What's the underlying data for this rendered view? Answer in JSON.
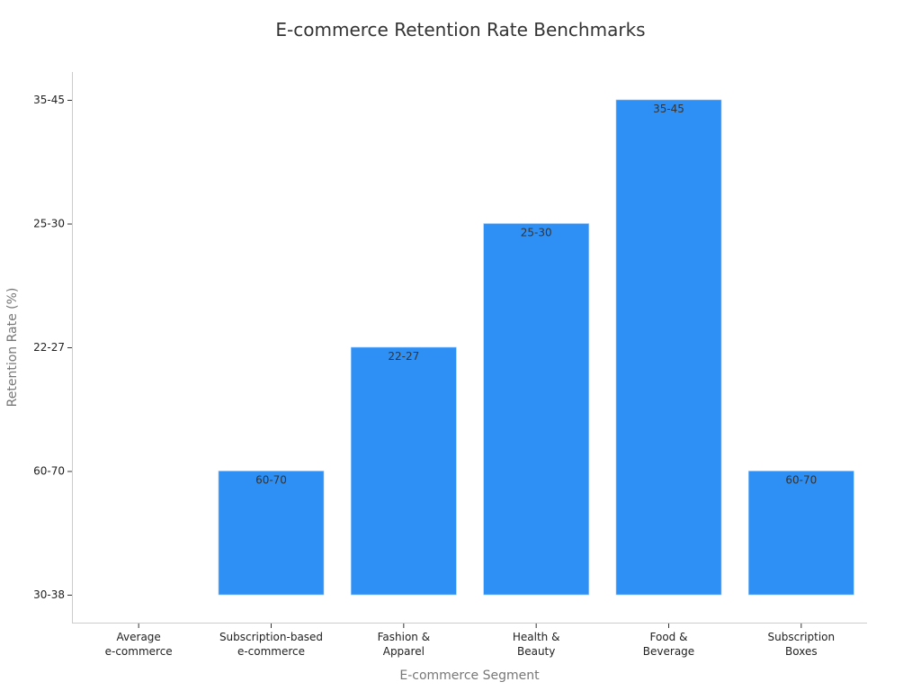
{
  "chart_data": {
    "type": "bar",
    "title": "E-commerce Retention Rate Benchmarks",
    "xlabel": "E-commerce Segment",
    "ylabel": "Retention Rate (%)",
    "y_tick_labels": [
      "30-38",
      "60-70",
      "22-27",
      "25-30",
      "35-45"
    ],
    "categories": [
      [
        "Average",
        "e-commerce"
      ],
      [
        "Subscription-based",
        "e-commerce"
      ],
      [
        "Fashion &",
        "Apparel"
      ],
      [
        "Health &",
        "Beauty"
      ],
      [
        "Food &",
        "Beverage"
      ],
      [
        "Subscription",
        "Boxes"
      ]
    ],
    "values": [
      "30-38",
      "60-70",
      "22-27",
      "25-30",
      "35-45",
      "60-70"
    ],
    "data_labels": [
      "",
      "60-70",
      "22-27",
      "25-30",
      "35-45",
      "60-70"
    ],
    "bar_color": "#2e90f5",
    "grid": false,
    "legend": "none"
  }
}
